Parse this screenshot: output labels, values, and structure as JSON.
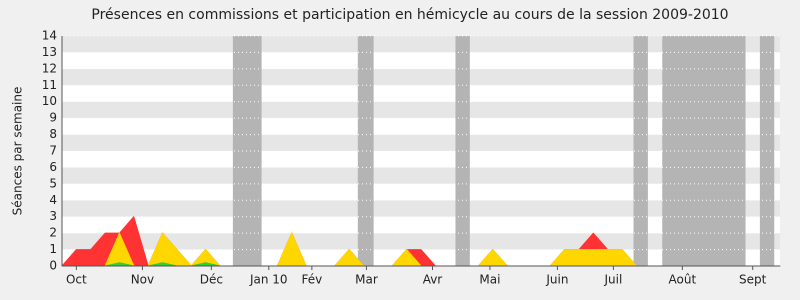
{
  "chart_data": {
    "type": "area",
    "title": "Présences en commissions et participation en hémicycle au cours de la session 2009-2010",
    "y_label": "Séances par semaine",
    "x": [
      0,
      1,
      2,
      3,
      4,
      5,
      6,
      7,
      8,
      9,
      10,
      11,
      12,
      13,
      14,
      15,
      16,
      17,
      18,
      19,
      20,
      21,
      22,
      23,
      24,
      25,
      26,
      27,
      28,
      29,
      30,
      31,
      32,
      33,
      34,
      35,
      36,
      37,
      38,
      39,
      40,
      41,
      42,
      43,
      44,
      45,
      46,
      47,
      48,
      49,
      50
    ],
    "xlim": [
      0,
      50
    ],
    "xticks": [
      {
        "value": 1,
        "label": "Oct"
      },
      {
        "value": 5.6,
        "label": "Nov"
      },
      {
        "value": 10.4,
        "label": "Déc"
      },
      {
        "value": 14.4,
        "label": "Jan 10"
      },
      {
        "value": 17.4,
        "label": "Fév"
      },
      {
        "value": 21.2,
        "label": "Mar"
      },
      {
        "value": 25.8,
        "label": "Avr"
      },
      {
        "value": 29.8,
        "label": "Mai"
      },
      {
        "value": 34.5,
        "label": "Juin"
      },
      {
        "value": 38.4,
        "label": "Juil"
      },
      {
        "value": 43.2,
        "label": "Août"
      },
      {
        "value": 48.1,
        "label": "Sept"
      }
    ],
    "ylim": [
      0,
      14
    ],
    "yticks": [
      0,
      1,
      2,
      3,
      4,
      5,
      6,
      7,
      8,
      9,
      10,
      11,
      12,
      13,
      14
    ],
    "shaded_ranges": [
      [
        11.9,
        13.9
      ],
      [
        20.6,
        21.7
      ],
      [
        27.4,
        28.4
      ],
      [
        39.8,
        40.8
      ],
      [
        41.8,
        47.6
      ],
      [
        48.6,
        49.6
      ]
    ],
    "shade_color": "#b4b4b4",
    "grid": true,
    "series": [
      {
        "color": "#ff3333",
        "values": [
          0,
          1,
          1,
          2,
          2,
          3,
          0,
          2,
          1,
          0,
          1,
          0,
          0,
          0,
          0,
          0,
          2,
          0,
          0,
          0,
          1,
          0,
          0,
          0,
          1,
          1,
          0,
          0,
          0,
          0,
          1,
          0,
          0,
          0,
          0,
          1,
          1,
          2,
          1,
          1,
          0,
          0,
          0,
          0,
          0,
          0,
          0,
          0,
          0,
          0,
          0
        ]
      },
      {
        "color": "#ffd700",
        "values": [
          0,
          0,
          0,
          0,
          2,
          0,
          0,
          2,
          1,
          0,
          1,
          0,
          0,
          0,
          0,
          0,
          2,
          0,
          0,
          0,
          1,
          0,
          0,
          0,
          1,
          0,
          0,
          0,
          0,
          0,
          1,
          0,
          0,
          0,
          0,
          1,
          1,
          1,
          1,
          1,
          0,
          0,
          0,
          0,
          0,
          0,
          0,
          0,
          0,
          0,
          0
        ]
      },
      {
        "color": "#33cc33",
        "values": [
          0,
          0,
          0,
          0,
          0.2,
          0,
          0,
          0.2,
          0,
          0,
          0.2,
          0,
          0,
          0,
          0,
          0,
          0,
          0,
          0,
          0,
          0,
          0,
          0,
          0,
          0,
          0,
          0,
          0,
          0,
          0,
          0,
          0,
          0,
          0,
          0,
          0,
          0,
          0,
          0,
          0,
          0,
          0,
          0,
          0,
          0,
          0,
          0,
          0,
          0,
          0,
          0
        ]
      }
    ]
  }
}
